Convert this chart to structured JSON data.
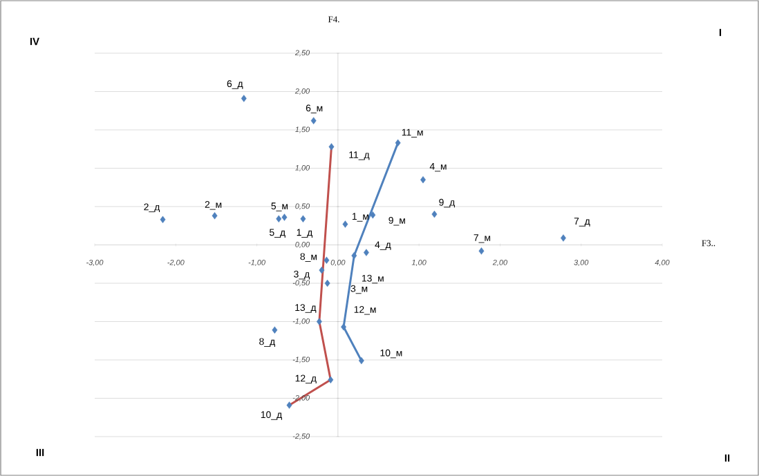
{
  "chart_data": {
    "type": "scatter",
    "xlabel": "F3..",
    "ylabel": "F4.",
    "xlim": [
      -3,
      4
    ],
    "ylim": [
      -2.5,
      2.5
    ],
    "xticks": [
      {
        "value": -3,
        "label": "-3,00"
      },
      {
        "value": -2,
        "label": "-2,00"
      },
      {
        "value": -1,
        "label": "-1,00"
      },
      {
        "value": 0,
        "label": "0,00"
      },
      {
        "value": 1,
        "label": "1,00"
      },
      {
        "value": 2,
        "label": "2,00"
      },
      {
        "value": 3,
        "label": "3,00"
      },
      {
        "value": 4,
        "label": "4,00"
      }
    ],
    "yticks": [
      {
        "value": -2.5,
        "label": "-2,50"
      },
      {
        "value": -2,
        "label": "-2,00"
      },
      {
        "value": -1.5,
        "label": "-1,50"
      },
      {
        "value": -1,
        "label": "-1,00"
      },
      {
        "value": -0.5,
        "label": "-0,50"
      },
      {
        "value": 0,
        "label": "0,00"
      },
      {
        "value": 0.5,
        "label": "0,50"
      },
      {
        "value": 1,
        "label": "1,00"
      },
      {
        "value": 1.5,
        "label": "1,50"
      },
      {
        "value": 2,
        "label": "2,00"
      },
      {
        "value": 2.5,
        "label": "2,50"
      }
    ],
    "grid": "y",
    "marker": "diamond",
    "series": [
      {
        "type": "scatter",
        "color": "#4f81bd",
        "x": [
          -1.16,
          -0.3,
          -0.08,
          0.74,
          1.05,
          1.19,
          0.43,
          2.78,
          1.77,
          -2.16,
          -1.52,
          -0.66,
          -0.73,
          -0.43,
          0.09,
          0.35,
          -0.14,
          -0.2,
          0.2,
          -0.13,
          -0.23,
          0.07,
          -0.78,
          0.29,
          -0.09,
          -0.6
        ],
        "values": [
          1.91,
          1.62,
          1.28,
          1.33,
          0.85,
          0.4,
          0.39,
          0.09,
          -0.08,
          0.33,
          0.38,
          0.36,
          0.34,
          0.34,
          0.27,
          -0.1,
          -0.2,
          -0.33,
          -0.14,
          -0.5,
          -1.0,
          -1.07,
          -1.11,
          -1.51,
          -1.76,
          -2.09
        ]
      },
      {
        "type": "line",
        "marker": "none",
        "color": "#c0504d",
        "x": [
          -0.08,
          -0.23,
          -0.09,
          -0.6
        ],
        "values": [
          1.28,
          -1.0,
          -1.76,
          -2.09
        ]
      },
      {
        "type": "line",
        "marker": "none",
        "color": "#4f81bd",
        "x": [
          0.74,
          0.2,
          0.07,
          0.29
        ],
        "values": [
          1.33,
          -0.14,
          -1.07,
          -1.51
        ]
      }
    ],
    "annotations": [
      "IV",
      "I",
      "III",
      "II",
      {
        "text": "6_д",
        "x": -1.16,
        "y": 1.91
      },
      {
        "text": "6_м",
        "x": -0.3,
        "y": 1.62
      },
      {
        "text": "11_д",
        "x": -0.08,
        "y": 1.28
      },
      {
        "text": "11_м",
        "x": 0.74,
        "y": 1.33
      },
      {
        "text": "4_м",
        "x": 1.05,
        "y": 0.85
      },
      {
        "text": "9_д",
        "x": 1.19,
        "y": 0.4
      },
      {
        "text": "9_м",
        "x": 0.43,
        "y": 0.39
      },
      {
        "text": "7_д",
        "x": 2.78,
        "y": 0.09
      },
      {
        "text": "7_м",
        "x": 1.77,
        "y": -0.08
      },
      {
        "text": "2_д",
        "x": -2.16,
        "y": 0.33
      },
      {
        "text": "2_м",
        "x": -1.52,
        "y": 0.38
      },
      {
        "text": "5_м",
        "x": -0.66,
        "y": 0.36
      },
      {
        "text": "5_д",
        "x": -0.73,
        "y": 0.34
      },
      {
        "text": "1_д",
        "x": -0.43,
        "y": 0.34
      },
      {
        "text": "1_м",
        "x": 0.09,
        "y": 0.27
      },
      {
        "text": "4_д",
        "x": 0.35,
        "y": -0.1
      },
      {
        "text": "8_м",
        "x": -0.14,
        "y": -0.2
      },
      {
        "text": "3_д",
        "x": -0.2,
        "y": -0.33
      },
      {
        "text": "13_м",
        "x": 0.2,
        "y": -0.14
      },
      {
        "text": "3_м",
        "x": -0.13,
        "y": -0.5
      },
      {
        "text": "13_д",
        "x": -0.23,
        "y": -1.0
      },
      {
        "text": "12_м",
        "x": 0.07,
        "y": -1.07
      },
      {
        "text": "8_д",
        "x": -0.78,
        "y": -1.11
      },
      {
        "text": "10_м",
        "x": 0.29,
        "y": -1.51
      },
      {
        "text": "12_д",
        "x": -0.09,
        "y": -1.76
      },
      {
        "text": "10_д",
        "x": -0.6,
        "y": -2.09
      }
    ]
  }
}
